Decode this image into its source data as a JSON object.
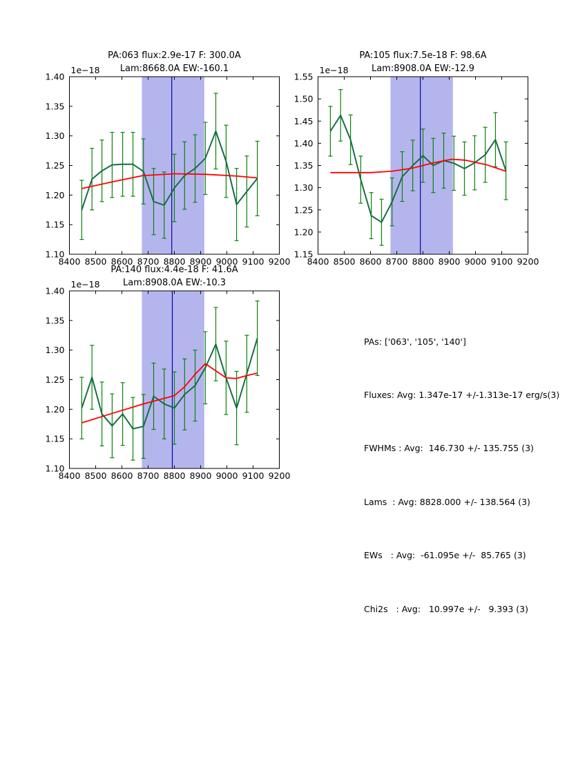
{
  "figure": {
    "background": "#ffffff"
  },
  "colors": {
    "data_line": "#156e43",
    "error_bar": "#098209",
    "model_line": "#ff0000",
    "band_fill": "#b5b5ee",
    "vline": "#0000aa",
    "axis": "#000000",
    "text": "#000000"
  },
  "chart_data": [
    {
      "type": "line",
      "title_line1": "PA:063 flux:2.9e-17 F: 300.0A",
      "title_line2": "Lam:8668.0A EW:-160.1",
      "offset_label": "1e−18",
      "xlim": [
        8400,
        9200
      ],
      "ylim": [
        1.1,
        1.4
      ],
      "xtick_step": 100,
      "ytick_step": 0.05,
      "grid": false,
      "legend": false,
      "band": [
        8676,
        8914
      ],
      "vline": 8790,
      "x": [
        8447,
        8486,
        8524,
        8563,
        8603,
        8642,
        8682,
        8721,
        8761,
        8800,
        8839,
        8879,
        8918,
        8958,
        8997,
        9037,
        9076,
        9116
      ],
      "flux": [
        1.175,
        1.227,
        1.241,
        1.251,
        1.252,
        1.252,
        1.24,
        1.189,
        1.183,
        1.212,
        1.233,
        1.245,
        1.262,
        1.308,
        1.257,
        1.184,
        1.206,
        1.228
      ],
      "flux_err": [
        0.05,
        0.052,
        0.052,
        0.055,
        0.054,
        0.054,
        0.055,
        0.056,
        0.056,
        0.057,
        0.057,
        0.057,
        0.061,
        0.064,
        0.061,
        0.061,
        0.06,
        0.063
      ],
      "model_x": [
        8447,
        8560,
        8680,
        8800,
        8920,
        9040,
        9116
      ],
      "model_y": [
        1.211,
        1.222,
        1.233,
        1.236,
        1.235,
        1.232,
        1.229
      ]
    },
    {
      "type": "line",
      "title_line1": "PA:105 flux:7.5e-18 F: 98.6A",
      "title_line2": "Lam:8908.0A EW:-12.9",
      "offset_label": "1e−18",
      "xlim": [
        8400,
        9200
      ],
      "ylim": [
        1.15,
        1.55
      ],
      "xtick_step": 100,
      "ytick_step": 0.05,
      "grid": false,
      "legend": false,
      "band": [
        8676,
        8914
      ],
      "vline": 8790,
      "x": [
        8447,
        8486,
        8524,
        8563,
        8603,
        8642,
        8682,
        8721,
        8761,
        8800,
        8839,
        8879,
        8918,
        8958,
        8997,
        9037,
        9076,
        9116
      ],
      "flux": [
        1.427,
        1.463,
        1.408,
        1.318,
        1.237,
        1.222,
        1.268,
        1.325,
        1.35,
        1.372,
        1.35,
        1.361,
        1.355,
        1.343,
        1.356,
        1.374,
        1.408,
        1.338
      ],
      "flux_err": [
        0.056,
        0.058,
        0.056,
        0.053,
        0.052,
        0.052,
        0.054,
        0.056,
        0.057,
        0.06,
        0.061,
        0.062,
        0.061,
        0.06,
        0.061,
        0.062,
        0.061,
        0.065
      ],
      "model_x": [
        8447,
        8600,
        8680,
        8760,
        8840,
        8910,
        8960,
        9040,
        9116
      ],
      "model_y": [
        1.334,
        1.334,
        1.337,
        1.344,
        1.356,
        1.364,
        1.362,
        1.352,
        1.337
      ]
    },
    {
      "type": "line",
      "title_line1": "PA:140 flux:4.4e-18 F: 41.6A",
      "title_line2": "Lam:8908.0A EW:-10.3",
      "offset_label": "1e−18",
      "xlim": [
        8400,
        9200
      ],
      "ylim": [
        1.1,
        1.4
      ],
      "xtick_step": 100,
      "ytick_step": 0.05,
      "grid": false,
      "legend": false,
      "band": [
        8676,
        8914
      ],
      "vline": 8792,
      "x": [
        8447,
        8486,
        8524,
        8563,
        8603,
        8642,
        8682,
        8721,
        8761,
        8800,
        8839,
        8879,
        8918,
        8958,
        8997,
        9037,
        9076,
        9116
      ],
      "flux": [
        1.202,
        1.254,
        1.192,
        1.172,
        1.192,
        1.167,
        1.171,
        1.222,
        1.209,
        1.202,
        1.225,
        1.24,
        1.27,
        1.31,
        1.253,
        1.202,
        1.26,
        1.32
      ],
      "flux_err": [
        0.052,
        0.054,
        0.054,
        0.054,
        0.053,
        0.053,
        0.054,
        0.056,
        0.059,
        0.061,
        0.06,
        0.06,
        0.061,
        0.062,
        0.062,
        0.062,
        0.065,
        0.063
      ],
      "model_x": [
        8447,
        8563,
        8682,
        8800,
        8839,
        8879,
        8918,
        8958,
        8997,
        9037,
        9076,
        9116
      ],
      "model_y": [
        1.177,
        1.193,
        1.209,
        1.223,
        1.238,
        1.259,
        1.277,
        1.265,
        1.253,
        1.252,
        1.257,
        1.261
      ]
    }
  ],
  "stats_panel": {
    "lines": [
      "PAs: ['063', '105', '140']",
      "Fluxes: Avg: 1.347e-17 +/-1.313e-17 erg/s(3)",
      "FWHMs : Avg:  146.730 +/- 135.755 (3)",
      "Lams  : Avg: 8828.000 +/- 138.564 (3)",
      "EWs   : Avg:  -61.095e +/-  85.765 (3)",
      "Chi2s   : Avg:   10.997e +/-   9.393 (3)"
    ]
  }
}
